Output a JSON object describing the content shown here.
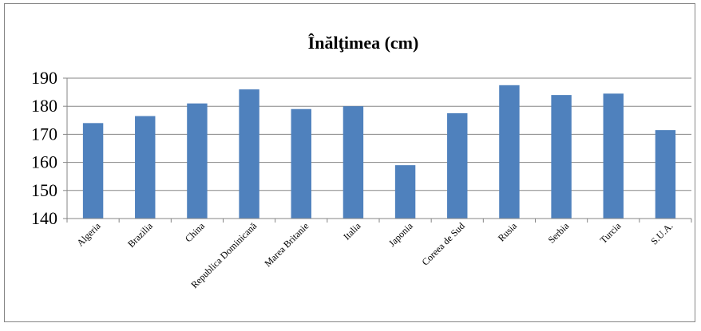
{
  "chart_data": {
    "type": "bar",
    "title": "Înălţimea (cm)",
    "xlabel": "",
    "ylabel": "",
    "categories": [
      "Algeria",
      "Brazilia",
      "China",
      "Republica Dominicană",
      "Marea Britanie",
      "Italia",
      "Japonia",
      "Coreea de Sud",
      "Rusia",
      "Serbia",
      "Turcia",
      "S.U.A."
    ],
    "values": [
      174,
      176.5,
      181,
      186,
      179,
      180,
      159,
      177.5,
      187.5,
      184,
      184.5,
      171.5
    ],
    "ylim": [
      140,
      190
    ],
    "yticks": [
      140,
      150,
      160,
      170,
      180,
      190
    ],
    "grid": true,
    "legend": "none",
    "bar_color": "#4F81BD",
    "grid_color": "#868686"
  }
}
